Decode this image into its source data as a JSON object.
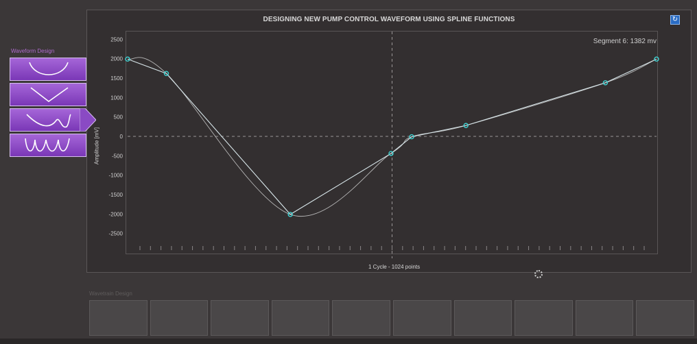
{
  "header": {
    "title": "DESIGNING NEW PUMP CONTROL WAVEFORM USING SPLINE FUNCTIONS",
    "segment_label": "Segment 6: 1382 mv",
    "refresh_icon": "refresh-icon"
  },
  "sidebar": {
    "title": "Waveform Design",
    "buttons": [
      {
        "name": "u-shape",
        "icon": "u-wave-icon"
      },
      {
        "name": "v-shape",
        "icon": "v-wave-icon"
      },
      {
        "name": "w-shape",
        "icon": "w-wave-icon",
        "selected": true
      },
      {
        "name": "multi-shape",
        "icon": "multi-wave-icon"
      }
    ]
  },
  "chart_data": {
    "type": "line",
    "ylabel": "Amplitude [mV]",
    "xlabel": "1 Cycle - 1024 points",
    "ylim": [
      -3000,
      2700
    ],
    "xlim": [
      0,
      1024
    ],
    "y_ticks": [
      2500,
      2000,
      1500,
      1000,
      500,
      0,
      -500,
      -1000,
      -1500,
      -2000,
      -2500
    ],
    "grid": false,
    "series": [
      {
        "points": [
          [
            0,
            1990
          ],
          [
            75,
            1620
          ],
          [
            315,
            -2010
          ],
          [
            510,
            -440
          ],
          [
            550,
            -10
          ],
          [
            655,
            280
          ],
          [
            925,
            1380
          ],
          [
            1024,
            1990
          ]
        ]
      }
    ],
    "colors": {
      "line": "#d8e6ea",
      "point": "#3fd4d4",
      "smooth": "#b8b8b8"
    }
  },
  "wavetrain": {
    "title": "Wavetrain Design",
    "slot_count": 10
  }
}
